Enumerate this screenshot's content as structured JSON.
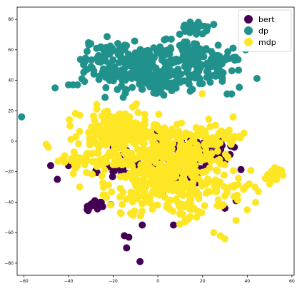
{
  "chart_data": {
    "type": "scatter",
    "title": "",
    "xlabel": "",
    "ylabel": "",
    "xlim": [
      -63,
      61
    ],
    "ylim": [
      -88,
      88
    ],
    "xticks": [
      -60,
      -40,
      -20,
      0,
      20,
      40,
      60
    ],
    "yticks": [
      -80,
      -60,
      -40,
      -20,
      0,
      20,
      40,
      60,
      80
    ],
    "xtick_labels": [
      "−60",
      "−40",
      "−20",
      "0",
      "20",
      "40",
      "60"
    ],
    "ytick_labels": [
      "−80",
      "−60",
      "−40",
      "−20",
      "0",
      "20",
      "40",
      "60",
      "80"
    ],
    "grid": false,
    "legend": {
      "position": "top-right"
    },
    "series": [
      {
        "name": "bert",
        "color": "#440154",
        "clusters": [
          {
            "cx": 15,
            "cy": -12,
            "sx": 8,
            "sy": 9,
            "n": 70
          },
          {
            "cx": 27,
            "cy": -5,
            "sx": 4,
            "sy": 5,
            "n": 30
          },
          {
            "cx": -28,
            "cy": -42,
            "sx": 3,
            "sy": 2,
            "n": 18
          },
          {
            "cx": -20,
            "cy": -20,
            "sx": 5,
            "sy": 4,
            "n": 14
          },
          {
            "cx": 5,
            "cy": -18,
            "sx": 6,
            "sy": 5,
            "n": 18
          },
          {
            "cx": -5,
            "cy": -5,
            "sx": 10,
            "sy": 8,
            "n": 20
          }
        ],
        "points": [
          {
            "x": -15,
            "y": -62
          },
          {
            "x": -13,
            "y": -63
          },
          {
            "x": -14,
            "y": -70
          },
          {
            "x": -7,
            "y": -55
          },
          {
            "x": -8,
            "y": -79
          },
          {
            "x": -48,
            "y": -16
          },
          {
            "x": -40,
            "y": -16
          },
          {
            "x": 35,
            "y": -39
          },
          {
            "x": 30,
            "y": -44
          },
          {
            "x": -20,
            "y": -4
          },
          {
            "x": 2,
            "y": -35
          },
          {
            "x": 7,
            "y": -55
          },
          {
            "x": 10,
            "y": -10
          },
          {
            "x": -45,
            "y": -25
          }
        ]
      },
      {
        "name": "dp",
        "color": "#21918c",
        "clusters": [
          {
            "cx": -8,
            "cy": 45,
            "sx": 10,
            "sy": 7,
            "n": 160
          },
          {
            "cx": -22,
            "cy": 56,
            "sx": 6,
            "sy": 5,
            "n": 60
          },
          {
            "cx": 22,
            "cy": 48,
            "sx": 8,
            "sy": 6,
            "n": 110
          },
          {
            "cx": 12,
            "cy": 60,
            "sx": 5,
            "sy": 4,
            "n": 40
          },
          {
            "cx": 16,
            "cy": 74,
            "sx": 3,
            "sy": 2,
            "n": 30
          },
          {
            "cx": 2,
            "cy": 38,
            "sx": 4,
            "sy": 4,
            "n": 40
          },
          {
            "cx": -3,
            "cy": 55,
            "sx": 4,
            "sy": 3,
            "n": 25
          }
        ],
        "points": [
          {
            "x": -38,
            "y": 37
          },
          {
            "x": -36,
            "y": 37
          },
          {
            "x": -40,
            "y": 37
          },
          {
            "x": -46,
            "y": 35
          },
          {
            "x": -34,
            "y": 41
          },
          {
            "x": -61,
            "y": 16
          },
          {
            "x": 33,
            "y": 31
          },
          {
            "x": 31,
            "y": 31
          },
          {
            "x": 27,
            "y": 63
          },
          {
            "x": -30,
            "y": 64
          },
          {
            "x": 6,
            "y": 67
          }
        ]
      },
      {
        "name": "mdp",
        "color": "#fde725",
        "clusters": [
          {
            "cx": -18,
            "cy": 5,
            "sx": 9,
            "sy": 8,
            "n": 170
          },
          {
            "cx": 0,
            "cy": -10,
            "sx": 12,
            "sy": 12,
            "n": 240
          },
          {
            "cx": 10,
            "cy": -22,
            "sx": 10,
            "sy": 10,
            "n": 140
          },
          {
            "cx": -10,
            "cy": -35,
            "sx": 8,
            "sy": 6,
            "n": 60
          },
          {
            "cx": 25,
            "cy": 3,
            "sx": 8,
            "sy": 5,
            "n": 70
          },
          {
            "cx": 30,
            "cy": -30,
            "sx": 6,
            "sy": 8,
            "n": 40
          },
          {
            "cx": 52,
            "cy": -22,
            "sx": 2,
            "sy": 2,
            "n": 22
          },
          {
            "cx": -38,
            "cy": -15,
            "sx": 3,
            "sy": 3,
            "n": 16
          },
          {
            "cx": 12,
            "cy": -45,
            "sx": 5,
            "sy": 4,
            "n": 28
          },
          {
            "cx": -25,
            "cy": -10,
            "sx": 5,
            "sy": 6,
            "n": 30
          }
        ],
        "points": [
          {
            "x": 28,
            "y": -62
          },
          {
            "x": 30,
            "y": -64
          },
          {
            "x": 25,
            "y": -60
          },
          {
            "x": -50,
            "y": -2
          },
          {
            "x": -49,
            "y": -4
          },
          {
            "x": 40,
            "y": -45
          },
          {
            "x": 35,
            "y": -52
          },
          {
            "x": -35,
            "y": -30
          },
          {
            "x": 50,
            "y": -28
          },
          {
            "x": 45,
            "y": -33
          }
        ]
      }
    ]
  }
}
